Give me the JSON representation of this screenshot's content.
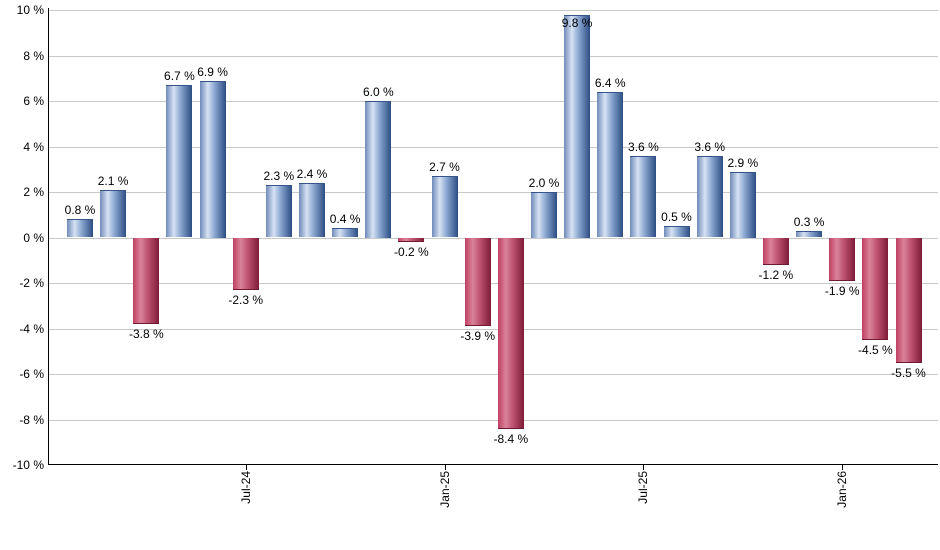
{
  "chart_data": {
    "type": "bar",
    "title": "",
    "xlabel": "",
    "ylabel": "",
    "unit": "%",
    "ylim": [
      -10,
      10
    ],
    "grid": true,
    "legend": null,
    "y_ticks": [
      10,
      8,
      6,
      4,
      2,
      0,
      -2,
      -4,
      -6,
      -8,
      -10
    ],
    "y_tick_labels": [
      "10 %",
      "8 %",
      "6 %",
      "4 %",
      "2 %",
      "0 %",
      "-2 %",
      "-4 %",
      "-6 %",
      "-8 %",
      "-10 %"
    ],
    "x_tick_labels": [
      {
        "label": "Jul-24",
        "bar_index": 5
      },
      {
        "label": "Jan-25",
        "bar_index": 11
      },
      {
        "label": "Jul-25",
        "bar_index": 17
      },
      {
        "label": "Jan-26",
        "bar_index": 23
      }
    ],
    "values": [
      0.8,
      2.1,
      -3.8,
      6.7,
      6.9,
      -2.3,
      2.3,
      2.4,
      0.4,
      6.0,
      -0.2,
      2.7,
      -3.9,
      -8.4,
      2.0,
      9.8,
      6.4,
      3.6,
      0.5,
      3.6,
      2.9,
      -1.2,
      0.3,
      -1.9,
      -4.5,
      -5.5
    ],
    "bar_labels": [
      "0.8 %",
      "2.1 %",
      "-3.8 %",
      "6.7 %",
      "6.9 %",
      "-2.3 %",
      "2.3 %",
      "2.4 %",
      "0.4 %",
      "6.0 %",
      "-0.2 %",
      "2.7 %",
      "-3.9 %",
      "-8.4 %",
      "2.0 %",
      "9.8 %",
      "6.4 %",
      "3.6 %",
      "0.5 %",
      "3.6 %",
      "2.9 %",
      "-1.2 %",
      "0.3 %",
      "-1.9 %",
      "-4.5 %",
      "-5.5 %"
    ],
    "colors": {
      "positive_gradient": [
        "#6f8ab8",
        "#d6e2f4",
        "#8da9d2",
        "#2c4d83"
      ],
      "negative_gradient": [
        "#bf3f63",
        "#da8399",
        "#c05674",
        "#7e1c37"
      ],
      "positive_edge": "#365689",
      "negative_edge": "#701a31",
      "gridline": "#c9c9c9",
      "axis": "#000000",
      "label_text": "#000000",
      "background": "#ffffff"
    }
  }
}
